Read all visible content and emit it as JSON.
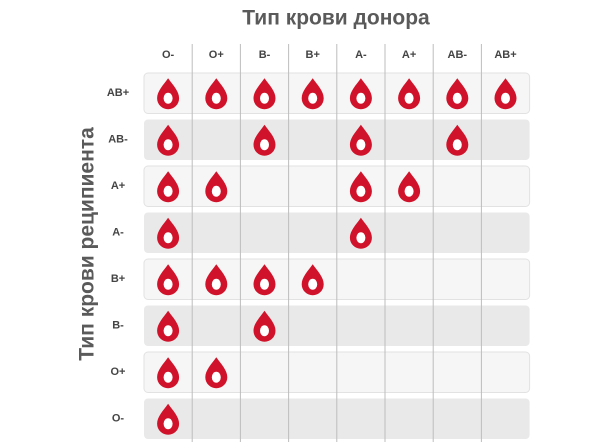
{
  "title": "Тип крови донора",
  "row_axis_label": "Тип крови реципиента",
  "columns": [
    "O-",
    "O+",
    "B-",
    "B+",
    "A-",
    "A+",
    "AB-",
    "AB+"
  ],
  "rows": [
    {
      "label": "AB+",
      "compatible": [
        true,
        true,
        true,
        true,
        true,
        true,
        true,
        true
      ]
    },
    {
      "label": "AB-",
      "compatible": [
        true,
        false,
        true,
        false,
        true,
        false,
        true,
        false
      ]
    },
    {
      "label": "A+",
      "compatible": [
        true,
        true,
        false,
        false,
        true,
        true,
        false,
        false
      ]
    },
    {
      "label": "A-",
      "compatible": [
        true,
        false,
        false,
        false,
        true,
        false,
        false,
        false
      ]
    },
    {
      "label": "B+",
      "compatible": [
        true,
        true,
        true,
        true,
        false,
        false,
        false,
        false
      ]
    },
    {
      "label": "B-",
      "compatible": [
        true,
        false,
        true,
        false,
        false,
        false,
        false,
        false
      ]
    },
    {
      "label": "O+",
      "compatible": [
        true,
        true,
        false,
        false,
        false,
        false,
        false,
        false
      ]
    },
    {
      "label": "O-",
      "compatible": [
        true,
        false,
        false,
        false,
        false,
        false,
        false,
        false
      ]
    }
  ]
}
